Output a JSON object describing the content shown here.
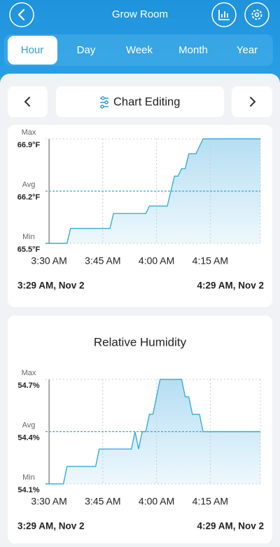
{
  "header": {
    "title": "Grow Room"
  },
  "tabs": {
    "items": [
      "Hour",
      "Day",
      "Week",
      "Month",
      "Year"
    ],
    "active": "Hour"
  },
  "toolbar": {
    "label": "Chart Editing"
  },
  "chart_data": [
    {
      "type": "line",
      "color": "#39acd8",
      "x": [
        29,
        35,
        36,
        47,
        48,
        57,
        58,
        63,
        64,
        65,
        66,
        67,
        68,
        69,
        71,
        73,
        89
      ],
      "values": [
        65.5,
        65.5,
        65.7,
        65.7,
        65.9,
        65.9,
        66.0,
        66.0,
        66.2,
        66.4,
        66.4,
        66.5,
        66.5,
        66.7,
        66.7,
        66.9,
        66.9
      ],
      "xlim": [
        29,
        89
      ],
      "xticks": [
        {
          "value": 30,
          "label": "3:30 AM"
        },
        {
          "value": 45,
          "label": "3:45 AM"
        },
        {
          "value": 60,
          "label": "4:00 AM"
        },
        {
          "value": 75,
          "label": "4:15 AM"
        }
      ],
      "ylim": [
        65.5,
        66.9
      ],
      "yticks": [
        {
          "value": 65.5,
          "label": "65.5°F"
        },
        {
          "value": 66.2,
          "label": "66.2°F"
        },
        {
          "value": 66.9,
          "label": "66.9°F"
        }
      ],
      "tick_names": [
        "Min",
        "Avg",
        "Max"
      ],
      "range_labels": [
        "3:29 AM, Nov 2",
        "4:29 AM, Nov 2"
      ]
    },
    {
      "type": "line",
      "title": "Relative Humidity",
      "color": "#39acd8",
      "x": [
        29,
        34,
        35,
        43,
        44,
        53,
        54,
        55,
        56,
        57,
        58,
        59,
        60,
        61,
        67,
        68,
        69,
        70,
        72,
        73,
        89
      ],
      "values": [
        54.1,
        54.1,
        54.2,
        54.2,
        54.3,
        54.3,
        54.4,
        54.3,
        54.4,
        54.4,
        54.5,
        54.5,
        54.6,
        54.7,
        54.7,
        54.6,
        54.6,
        54.5,
        54.5,
        54.4,
        54.4
      ],
      "xlim": [
        29,
        89
      ],
      "xticks": [
        {
          "value": 30,
          "label": "3:30 AM"
        },
        {
          "value": 45,
          "label": "3:45 AM"
        },
        {
          "value": 60,
          "label": "4:00 AM"
        },
        {
          "value": 75,
          "label": "4:15 AM"
        }
      ],
      "ylim": [
        54.1,
        54.7
      ],
      "yticks": [
        {
          "value": 54.1,
          "label": "54.1%"
        },
        {
          "value": 54.4,
          "label": "54.4%"
        },
        {
          "value": 54.7,
          "label": "54.7%"
        }
      ],
      "tick_names": [
        "Min",
        "Avg",
        "Max"
      ],
      "range_labels": [
        "3:29 AM, Nov 2",
        "4:29 AM, Nov 2"
      ]
    }
  ]
}
